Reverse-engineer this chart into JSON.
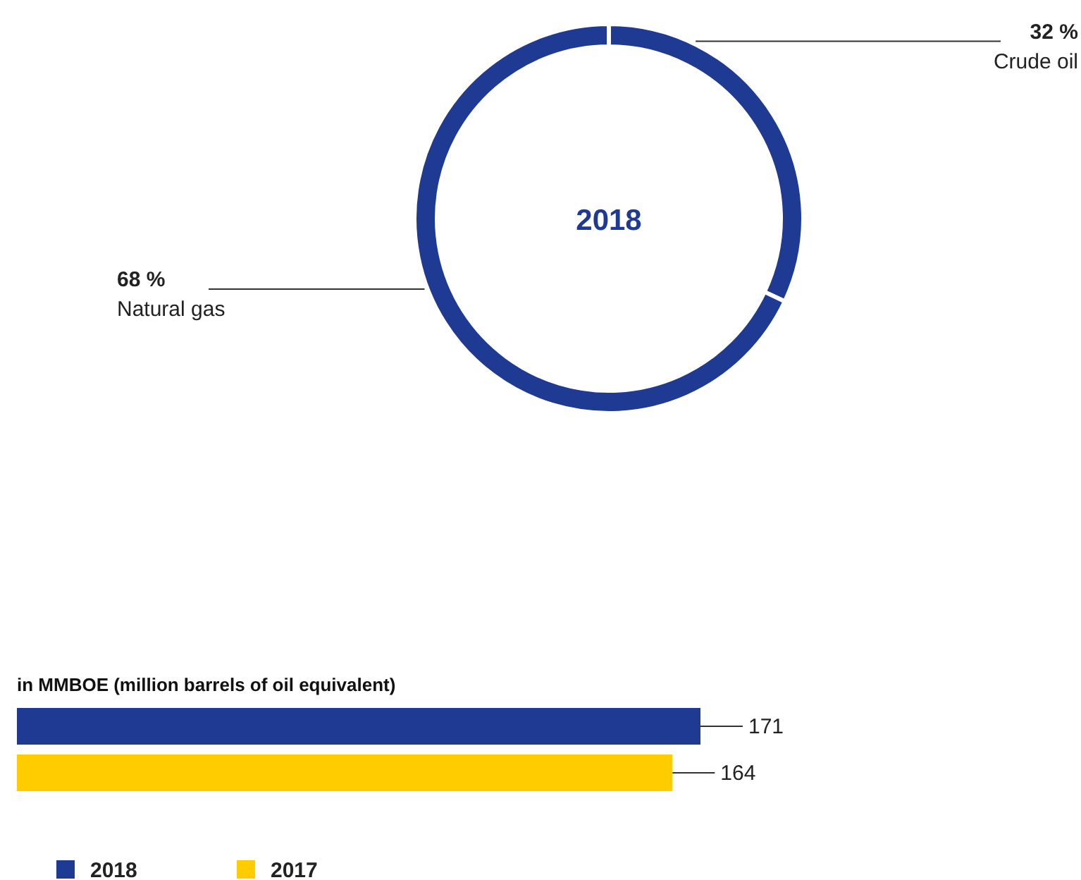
{
  "chart_data": [
    {
      "type": "donut",
      "title": "2018",
      "categories": [
        "Crude oil",
        "Natural gas"
      ],
      "values": [
        32,
        68
      ],
      "colors": [
        "#1f3a93",
        "#1f3a93"
      ],
      "value_labels": [
        "32 %",
        "68 %"
      ]
    },
    {
      "type": "bar",
      "orientation": "horizontal",
      "title": "in MMBOE (million barrels of oil equivalent)",
      "categories": [
        null
      ],
      "series": [
        {
          "name": "2018",
          "color": "#1f3a93",
          "values": [
            171
          ]
        },
        {
          "name": "2017",
          "color": "#ffcc00",
          "values": [
            164
          ]
        }
      ],
      "data_labels": true,
      "legend": "bottom left"
    }
  ]
}
